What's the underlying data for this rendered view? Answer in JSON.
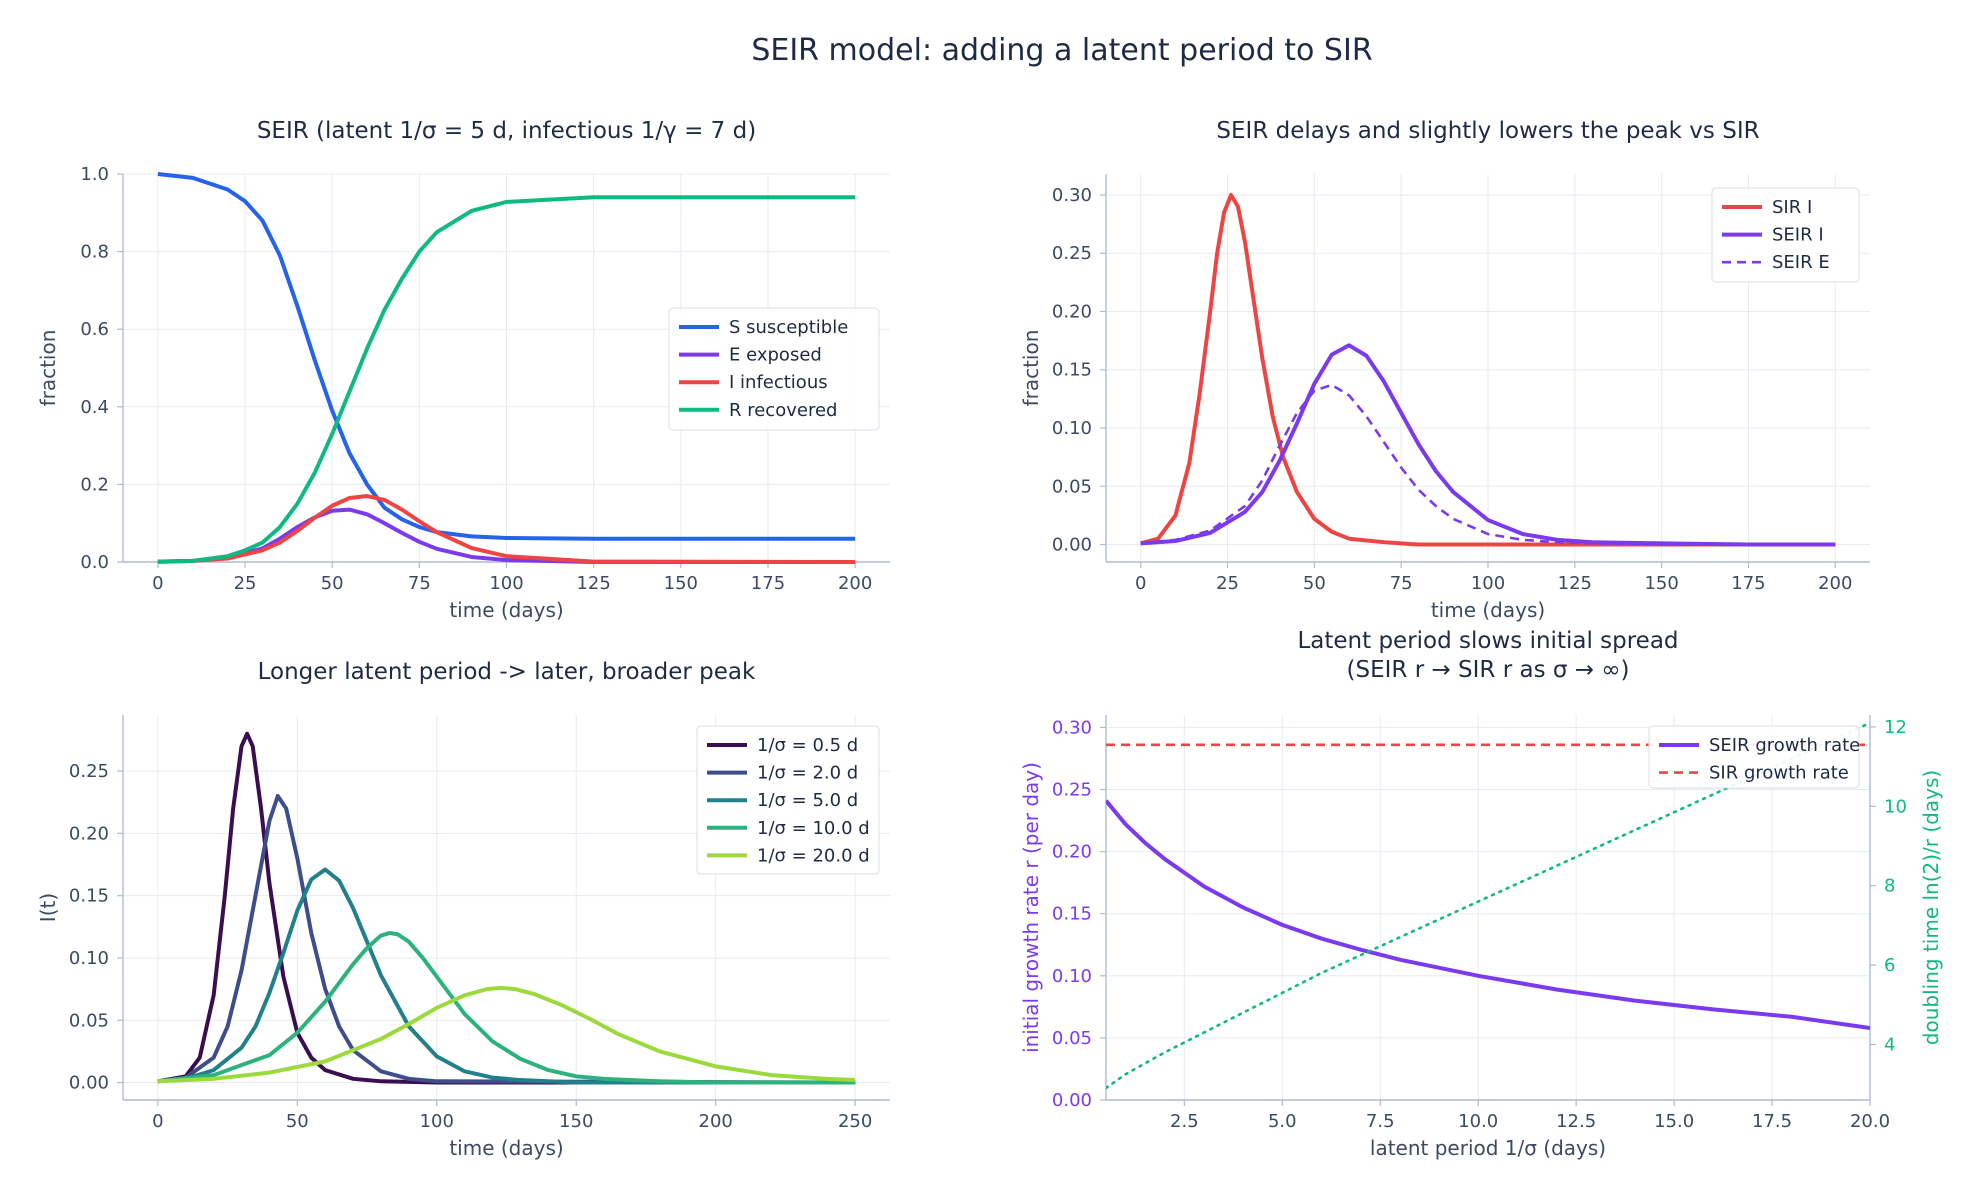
{
  "figure": {
    "suptitle": "SEIR model:  adding a latent period to SIR"
  },
  "chart_data": [
    {
      "id": "p1",
      "type": "line",
      "title": "SEIR  (latent  1/σ = 5 d, infectious  1/γ = 7 d)",
      "xlabel": "time  (days)",
      "ylabel": "fraction",
      "xlim": [
        -10,
        210
      ],
      "ylim": [
        0,
        1.0
      ],
      "xticks": [
        0,
        25,
        50,
        75,
        100,
        125,
        150,
        175,
        200
      ],
      "yticks": [
        0.0,
        0.2,
        0.4,
        0.6,
        0.8,
        1.0
      ],
      "xtick_labels": [
        "0",
        "25",
        "50",
        "75",
        "100",
        "125",
        "150",
        "175",
        "200"
      ],
      "ytick_labels": [
        "0.0",
        "0.2",
        "0.4",
        "0.6",
        "0.8",
        "1.0"
      ],
      "grid": true,
      "legend_position": "center-right",
      "series": [
        {
          "name": "S  susceptible",
          "color": "#2563eb",
          "dash": "solid",
          "x": [
            0,
            10,
            20,
            25,
            30,
            35,
            40,
            45,
            50,
            55,
            60,
            65,
            70,
            75,
            80,
            90,
            100,
            125,
            150,
            200
          ],
          "y": [
            1.0,
            0.99,
            0.96,
            0.93,
            0.88,
            0.79,
            0.66,
            0.52,
            0.39,
            0.28,
            0.2,
            0.14,
            0.11,
            0.09,
            0.077,
            0.066,
            0.062,
            0.06,
            0.06,
            0.06
          ]
        },
        {
          "name": "E  exposed",
          "color": "#7c3aed",
          "dash": "solid",
          "x": [
            0,
            10,
            20,
            30,
            35,
            40,
            45,
            50,
            55,
            60,
            65,
            70,
            75,
            80,
            90,
            100,
            125,
            200
          ],
          "y": [
            0.001,
            0.003,
            0.011,
            0.035,
            0.06,
            0.09,
            0.115,
            0.132,
            0.135,
            0.123,
            0.1,
            0.075,
            0.052,
            0.034,
            0.013,
            0.005,
            0.0,
            0.0
          ]
        },
        {
          "name": "I  infectious",
          "color": "#ef4444",
          "dash": "solid",
          "x": [
            0,
            10,
            20,
            30,
            35,
            40,
            45,
            50,
            55,
            60,
            65,
            70,
            75,
            80,
            90,
            100,
            125,
            200
          ],
          "y": [
            0.001,
            0.003,
            0.009,
            0.03,
            0.05,
            0.08,
            0.114,
            0.145,
            0.165,
            0.17,
            0.16,
            0.135,
            0.105,
            0.077,
            0.036,
            0.015,
            0.001,
            0.0
          ]
        },
        {
          "name": "R  recovered",
          "color": "#10b981",
          "dash": "solid",
          "x": [
            0,
            10,
            20,
            25,
            30,
            35,
            40,
            45,
            50,
            55,
            60,
            65,
            70,
            75,
            80,
            90,
            100,
            125,
            150,
            200
          ],
          "y": [
            0.0,
            0.003,
            0.015,
            0.03,
            0.05,
            0.09,
            0.15,
            0.23,
            0.33,
            0.44,
            0.55,
            0.65,
            0.73,
            0.8,
            0.85,
            0.905,
            0.928,
            0.94,
            0.94,
            0.94
          ]
        }
      ]
    },
    {
      "id": "p2",
      "type": "line",
      "title": "SEIR delays and slightly lowers the peak vs SIR",
      "xlabel": "time  (days)",
      "ylabel": "fraction",
      "xlim": [
        -10,
        210
      ],
      "ylim": [
        -0.015,
        0.318
      ],
      "xticks": [
        0,
        25,
        50,
        75,
        100,
        125,
        150,
        175,
        200
      ],
      "yticks": [
        0.0,
        0.05,
        0.1,
        0.15,
        0.2,
        0.25,
        0.3
      ],
      "xtick_labels": [
        "0",
        "25",
        "50",
        "75",
        "100",
        "125",
        "150",
        "175",
        "200"
      ],
      "ytick_labels": [
        "0.00",
        "0.05",
        "0.10",
        "0.15",
        "0.20",
        "0.25",
        "0.30"
      ],
      "grid": true,
      "legend_position": "top-right",
      "series": [
        {
          "name": "SIR  I",
          "color": "#ef4444",
          "dash": "solid",
          "x": [
            0,
            5,
            10,
            14,
            17,
            20,
            22,
            24,
            26,
            28,
            30,
            32,
            35,
            38,
            41,
            45,
            50,
            55,
            60,
            70,
            80,
            100,
            125,
            200
          ],
          "y": [
            0.001,
            0.005,
            0.025,
            0.07,
            0.13,
            0.2,
            0.25,
            0.285,
            0.3,
            0.29,
            0.26,
            0.22,
            0.16,
            0.11,
            0.075,
            0.045,
            0.022,
            0.011,
            0.005,
            0.002,
            0.0,
            0.0,
            0.0,
            0.0
          ]
        },
        {
          "name": "SEIR  I",
          "color": "#7c3aed",
          "dash": "solid",
          "x": [
            0,
            10,
            20,
            30,
            35,
            40,
            45,
            50,
            55,
            60,
            65,
            70,
            75,
            80,
            85,
            90,
            100,
            110,
            120,
            130,
            150,
            175,
            200
          ],
          "y": [
            0.001,
            0.003,
            0.01,
            0.028,
            0.045,
            0.072,
            0.104,
            0.138,
            0.163,
            0.171,
            0.162,
            0.14,
            0.113,
            0.086,
            0.063,
            0.045,
            0.021,
            0.009,
            0.004,
            0.002,
            0.001,
            0.0,
            0.0
          ]
        },
        {
          "name": "SEIR  E",
          "color": "#7c3aed",
          "dash": "dashed",
          "x": [
            0,
            10,
            20,
            30,
            35,
            40,
            45,
            50,
            55,
            60,
            65,
            70,
            75,
            80,
            85,
            90,
            100,
            110,
            120,
            130,
            150,
            200
          ],
          "y": [
            0.001,
            0.004,
            0.012,
            0.033,
            0.055,
            0.085,
            0.113,
            0.132,
            0.137,
            0.128,
            0.11,
            0.088,
            0.066,
            0.047,
            0.033,
            0.022,
            0.009,
            0.004,
            0.002,
            0.001,
            0.0,
            0.0
          ]
        }
      ]
    },
    {
      "id": "p3",
      "type": "line",
      "title": "Longer latent period  ->  later, broader peak",
      "xlabel": "time  (days)",
      "ylabel": "I(t)",
      "xlim": [
        -12.5,
        262.5
      ],
      "ylim": [
        -0.014,
        0.295
      ],
      "xticks": [
        0,
        50,
        100,
        150,
        200,
        250
      ],
      "yticks": [
        0.0,
        0.05,
        0.1,
        0.15,
        0.2,
        0.25
      ],
      "xtick_labels": [
        "0",
        "50",
        "100",
        "150",
        "200",
        "250"
      ],
      "ytick_labels": [
        "0.00",
        "0.05",
        "0.10",
        "0.15",
        "0.20",
        "0.25"
      ],
      "grid": true,
      "legend_position": "top-right",
      "series": [
        {
          "name": "1/σ = 0.5 d",
          "color": "#3b0f4f",
          "dash": "solid",
          "x": [
            0,
            10,
            15,
            20,
            24,
            27,
            30,
            32,
            34,
            37,
            40,
            45,
            50,
            55,
            60,
            70,
            80,
            100,
            250
          ],
          "y": [
            0.001,
            0.005,
            0.02,
            0.07,
            0.15,
            0.22,
            0.27,
            0.28,
            0.27,
            0.22,
            0.16,
            0.085,
            0.04,
            0.02,
            0.01,
            0.003,
            0.001,
            0.0,
            0.0
          ]
        },
        {
          "name": "1/σ = 2.0 d",
          "color": "#3e4e8a",
          "dash": "solid",
          "x": [
            0,
            10,
            20,
            25,
            30,
            35,
            40,
            43,
            46,
            50,
            55,
            60,
            65,
            70,
            80,
            90,
            100,
            250
          ],
          "y": [
            0.001,
            0.004,
            0.02,
            0.045,
            0.09,
            0.15,
            0.21,
            0.23,
            0.22,
            0.18,
            0.12,
            0.075,
            0.045,
            0.026,
            0.009,
            0.003,
            0.001,
            0.0
          ]
        },
        {
          "name": "1/σ = 5.0 d",
          "color": "#21808a",
          "dash": "solid",
          "x": [
            0,
            10,
            20,
            30,
            35,
            40,
            45,
            50,
            55,
            60,
            65,
            70,
            75,
            80,
            90,
            100,
            110,
            120,
            130,
            140,
            150,
            250
          ],
          "y": [
            0.001,
            0.003,
            0.01,
            0.028,
            0.045,
            0.072,
            0.104,
            0.138,
            0.163,
            0.171,
            0.162,
            0.14,
            0.113,
            0.086,
            0.045,
            0.021,
            0.009,
            0.004,
            0.002,
            0.001,
            0.0,
            0.0
          ]
        },
        {
          "name": "1/σ = 10.0 d",
          "color": "#2db27d",
          "dash": "solid",
          "x": [
            0,
            20,
            40,
            50,
            60,
            70,
            75,
            80,
            83,
            86,
            90,
            95,
            100,
            110,
            120,
            130,
            140,
            150,
            160,
            180,
            200,
            250
          ],
          "y": [
            0.001,
            0.006,
            0.022,
            0.04,
            0.065,
            0.095,
            0.108,
            0.118,
            0.12,
            0.119,
            0.113,
            0.1,
            0.085,
            0.055,
            0.033,
            0.019,
            0.01,
            0.005,
            0.003,
            0.001,
            0.0,
            0.0
          ]
        },
        {
          "name": "1/σ = 20.0 d",
          "color": "#9bd93c",
          "dash": "solid",
          "x": [
            0,
            20,
            40,
            60,
            80,
            90,
            100,
            110,
            118,
            123,
            128,
            135,
            145,
            155,
            165,
            180,
            200,
            220,
            240,
            250
          ],
          "y": [
            0.001,
            0.003,
            0.008,
            0.017,
            0.035,
            0.047,
            0.06,
            0.07,
            0.075,
            0.076,
            0.075,
            0.071,
            0.062,
            0.051,
            0.039,
            0.025,
            0.013,
            0.006,
            0.003,
            0.002
          ]
        }
      ]
    },
    {
      "id": "p4",
      "type": "line",
      "title_line1": "Latent period slows initial spread",
      "title_line2": "(SEIR r  →  SIR r as σ → ∞)",
      "xlabel": "latent period  1/σ  (days)",
      "ylabel": "initial growth rate  r  (per day)",
      "ylabel_right": "doubling time  ln(2)/r  (days)",
      "xlim": [
        0.5,
        20.0
      ],
      "ylim": [
        0.0,
        0.31
      ],
      "ylim_right": [
        2.6,
        12.3
      ],
      "xticks": [
        2.5,
        5.0,
        7.5,
        10.0,
        12.5,
        15.0,
        17.5,
        20.0
      ],
      "yticks": [
        0.0,
        0.05,
        0.1,
        0.15,
        0.2,
        0.25,
        0.3
      ],
      "yticks_right": [
        4,
        6,
        8,
        10,
        12
      ],
      "xtick_labels": [
        "2.5",
        "5.0",
        "7.5",
        "10.0",
        "12.5",
        "15.0",
        "17.5",
        "20.0"
      ],
      "ytick_labels": [
        "0.00",
        "0.05",
        "0.10",
        "0.15",
        "0.20",
        "0.25",
        "0.30"
      ],
      "ytick_labels_right": [
        "4",
        "6",
        "8",
        "10",
        "12"
      ],
      "left_axis_color": "#7c3aed",
      "right_axis_color": "#10b981",
      "grid": true,
      "legend_position": "top-right",
      "series": [
        {
          "name": "SEIR growth rate",
          "color": "#7c3aed",
          "dash": "solid",
          "axis": "left",
          "x": [
            0.5,
            1,
            1.5,
            2,
            3,
            4,
            5,
            6,
            7,
            8,
            10,
            12,
            14,
            16,
            18,
            20
          ],
          "y": [
            0.241,
            0.222,
            0.207,
            0.194,
            0.172,
            0.155,
            0.141,
            0.13,
            0.121,
            0.113,
            0.1,
            0.089,
            0.08,
            0.073,
            0.067,
            0.058
          ]
        },
        {
          "name": "SIR growth rate",
          "color": "#ef4444",
          "dash": "dashed",
          "axis": "left",
          "x": [
            0.5,
            20.0
          ],
          "y": [
            0.286,
            0.286
          ]
        },
        {
          "name": "doubling time",
          "color": "#10b981",
          "dash": "dotted",
          "axis": "right",
          "in_legend": false,
          "x": [
            0.5,
            1,
            2,
            3,
            4,
            5,
            6,
            8,
            10,
            12,
            14,
            16,
            18,
            20
          ],
          "y": [
            2.9,
            3.25,
            3.8,
            4.3,
            4.8,
            5.3,
            5.8,
            6.7,
            7.6,
            8.5,
            9.4,
            10.3,
            11.2,
            12.1
          ]
        }
      ]
    }
  ]
}
